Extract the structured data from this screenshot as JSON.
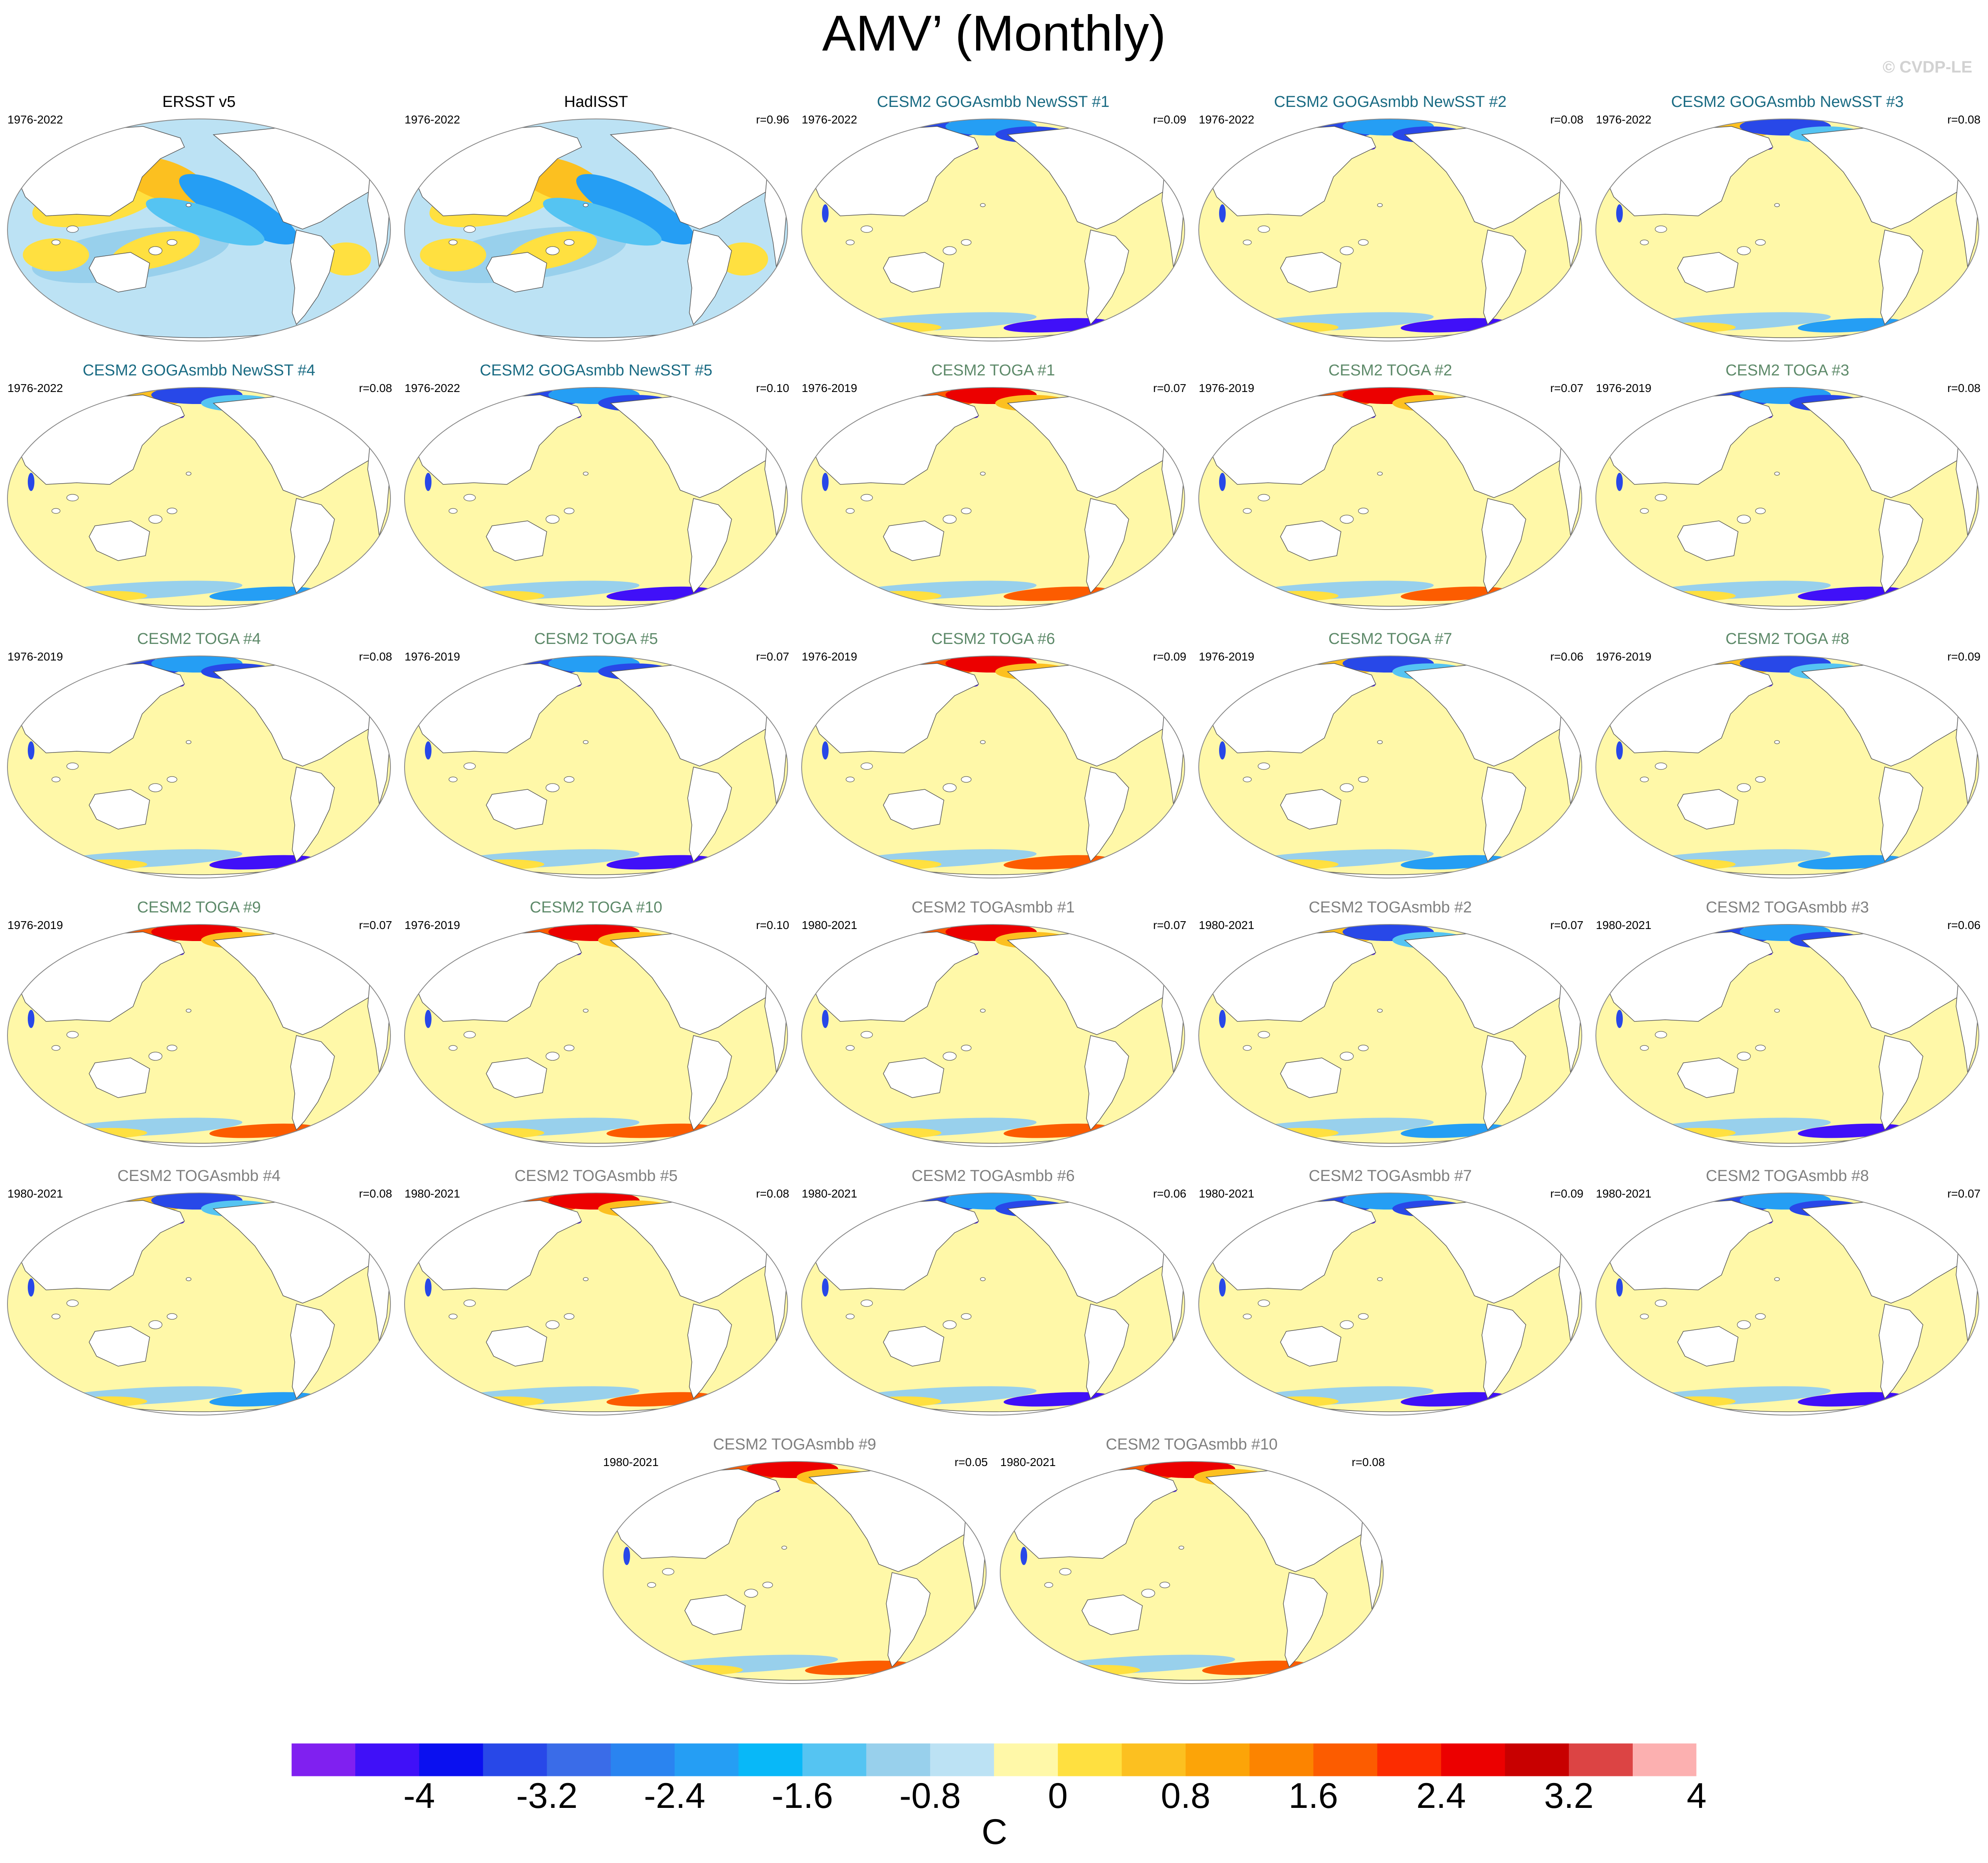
{
  "title": "AMV’ (Monthly)",
  "watermark": "© CVDP-LE",
  "colors": {
    "obs_title": "#000000",
    "goga_title": "#1a6b83",
    "toga_title": "#5e8a6a",
    "togasmbb_title": "#808080",
    "land": "#ffffff",
    "coast": "#555555"
  },
  "panels": [
    {
      "title": "ERSST v5",
      "group": "obs",
      "period": "1976-2022",
      "r": "",
      "pattern": "obs"
    },
    {
      "title": "HadISST",
      "group": "obs",
      "period": "1976-2022",
      "r": "r=0.96",
      "pattern": "obs"
    },
    {
      "title": "CESM2 GOGAsmbb NewSST #1",
      "group": "goga",
      "period": "1976-2022",
      "r": "r=0.09",
      "pattern": "blue"
    },
    {
      "title": "CESM2 GOGAsmbb NewSST #2",
      "group": "goga",
      "period": "1976-2022",
      "r": "r=0.08",
      "pattern": "blue"
    },
    {
      "title": "CESM2 GOGAsmbb NewSST #3",
      "group": "goga",
      "period": "1976-2022",
      "r": "r=0.08",
      "pattern": "mixed"
    },
    {
      "title": "CESM2 GOGAsmbb NewSST #4",
      "group": "goga",
      "period": "1976-2022",
      "r": "r=0.08",
      "pattern": "mixed"
    },
    {
      "title": "CESM2 GOGAsmbb NewSST #5",
      "group": "goga",
      "period": "1976-2022",
      "r": "r=0.10",
      "pattern": "blue"
    },
    {
      "title": "CESM2 TOGA #1",
      "group": "toga",
      "period": "1976-2019",
      "r": "r=0.07",
      "pattern": "red"
    },
    {
      "title": "CESM2 TOGA #2",
      "group": "toga",
      "period": "1976-2019",
      "r": "r=0.07",
      "pattern": "red"
    },
    {
      "title": "CESM2 TOGA #3",
      "group": "toga",
      "period": "1976-2019",
      "r": "r=0.08",
      "pattern": "blue"
    },
    {
      "title": "CESM2 TOGA #4",
      "group": "toga",
      "period": "1976-2019",
      "r": "r=0.08",
      "pattern": "blue"
    },
    {
      "title": "CESM2 TOGA #5",
      "group": "toga",
      "period": "1976-2019",
      "r": "r=0.07",
      "pattern": "blue"
    },
    {
      "title": "CESM2 TOGA #6",
      "group": "toga",
      "period": "1976-2019",
      "r": "r=0.09",
      "pattern": "red"
    },
    {
      "title": "CESM2 TOGA #7",
      "group": "toga",
      "period": "1976-2019",
      "r": "r=0.06",
      "pattern": "mixed"
    },
    {
      "title": "CESM2 TOGA #8",
      "group": "toga",
      "period": "1976-2019",
      "r": "r=0.09",
      "pattern": "mixed"
    },
    {
      "title": "CESM2 TOGA #9",
      "group": "toga",
      "period": "1976-2019",
      "r": "r=0.07",
      "pattern": "red"
    },
    {
      "title": "CESM2 TOGA #10",
      "group": "toga",
      "period": "1976-2019",
      "r": "r=0.10",
      "pattern": "red"
    },
    {
      "title": "CESM2 TOGAsmbb #1",
      "group": "togasmbb",
      "period": "1980-2021",
      "r": "r=0.07",
      "pattern": "red"
    },
    {
      "title": "CESM2 TOGAsmbb #2",
      "group": "togasmbb",
      "period": "1980-2021",
      "r": "r=0.07",
      "pattern": "mixed"
    },
    {
      "title": "CESM2 TOGAsmbb #3",
      "group": "togasmbb",
      "period": "1980-2021",
      "r": "r=0.06",
      "pattern": "blue"
    },
    {
      "title": "CESM2 TOGAsmbb #4",
      "group": "togasmbb",
      "period": "1980-2021",
      "r": "r=0.08",
      "pattern": "mixed"
    },
    {
      "title": "CESM2 TOGAsmbb #5",
      "group": "togasmbb",
      "period": "1980-2021",
      "r": "r=0.08",
      "pattern": "red"
    },
    {
      "title": "CESM2 TOGAsmbb #6",
      "group": "togasmbb",
      "period": "1980-2021",
      "r": "r=0.06",
      "pattern": "blue"
    },
    {
      "title": "CESM2 TOGAsmbb #7",
      "group": "togasmbb",
      "period": "1980-2021",
      "r": "r=0.09",
      "pattern": "blue"
    },
    {
      "title": "CESM2 TOGAsmbb #8",
      "group": "togasmbb",
      "period": "1980-2021",
      "r": "r=0.07",
      "pattern": "blue"
    },
    {
      "title": "CESM2 TOGAsmbb #9",
      "group": "togasmbb",
      "period": "1980-2021",
      "r": "r=0.05",
      "pattern": "red"
    },
    {
      "title": "CESM2 TOGAsmbb #10",
      "group": "togasmbb",
      "period": "1980-2021",
      "r": "r=0.08",
      "pattern": "red"
    }
  ],
  "colorbar": {
    "colors": [
      "#8020f0",
      "#4010f8",
      "#0a10f0",
      "#2848e8",
      "#3a6ce8",
      "#2a84f0",
      "#259ef4",
      "#08b8f8",
      "#55c4f2",
      "#98d0ec",
      "#bce2f4",
      "#fff8a8",
      "#ffe040",
      "#fcc020",
      "#fca408",
      "#fc8400",
      "#fc5c00",
      "#fc2c00",
      "#ec0000",
      "#c80000",
      "#dc4444",
      "#fcb0b0"
    ],
    "labels": [
      "-4",
      "-3.2",
      "-2.4",
      "-1.6",
      "-0.8",
      "0",
      "0.8",
      "1.6",
      "2.4",
      "3.2",
      "4"
    ],
    "units": "C"
  }
}
